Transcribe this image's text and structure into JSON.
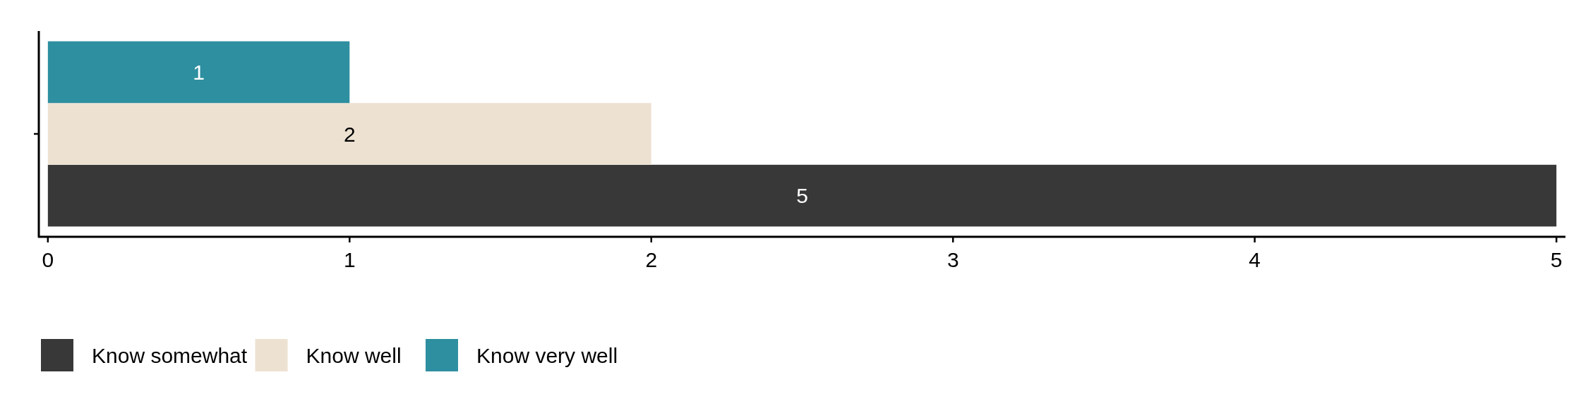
{
  "chart_data": {
    "type": "bar",
    "orientation": "horizontal",
    "categories": [
      null
    ],
    "series": [
      {
        "name": "Know somewhat",
        "color": "#383838",
        "values": [
          5
        ]
      },
      {
        "name": "Know well",
        "color": "#ede2d2",
        "values": [
          2
        ]
      },
      {
        "name": "Know very well",
        "color": "#2e8fa0",
        "values": [
          1
        ]
      }
    ],
    "xlim": [
      -0.03,
      5.03
    ],
    "xticks": [
      0,
      1,
      2,
      3,
      4,
      5
    ],
    "data_labels": true,
    "legend": "bottom",
    "grid": false
  }
}
